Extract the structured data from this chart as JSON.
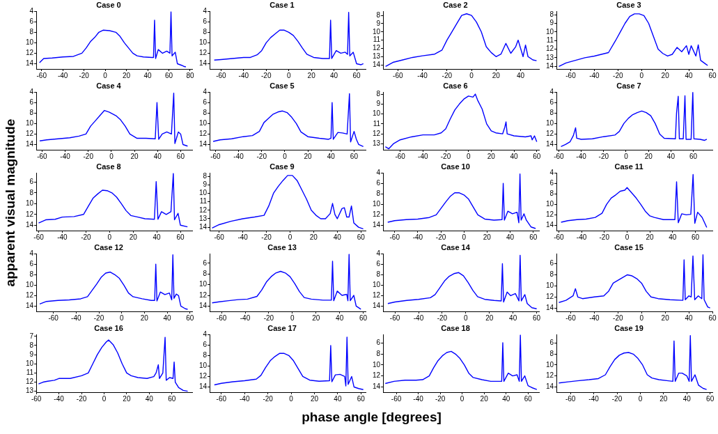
{
  "chart_data": [
    {
      "type": "line",
      "title": "Case 0",
      "xlim": [
        -65,
        82
      ],
      "xticks": [
        -60,
        -40,
        -20,
        0,
        20,
        40,
        60,
        80
      ],
      "ylim": [
        15,
        4
      ],
      "yticks": [
        4,
        6,
        8,
        10,
        12,
        14
      ],
      "grid": false,
      "series": [
        {
          "color": "#0000ff",
          "x": [
            -62,
            -58,
            -50,
            -40,
            -30,
            -22,
            -18,
            -14,
            -10,
            -6,
            -2,
            4,
            10,
            14,
            18,
            22,
            26,
            30,
            36,
            44,
            45.5,
            46.5,
            47.5,
            50,
            54,
            58,
            61,
            62,
            63,
            66,
            68,
            72,
            74,
            76
          ],
          "values": [
            13.8,
            13,
            12.9,
            12.7,
            12.6,
            12,
            11,
            9.8,
            9,
            8,
            7.6,
            7.7,
            8,
            8.8,
            10,
            11,
            12,
            12.5,
            12.7,
            12.8,
            12.8,
            5.7,
            13,
            11.3,
            12,
            11.6,
            12,
            4.1,
            12.5,
            11.8,
            14,
            14.3,
            14.5,
            14.6
          ]
        }
      ]
    },
    {
      "type": "line",
      "title": "Case 1",
      "xlim": [
        -70,
        68
      ],
      "xticks": [
        -60,
        -40,
        -20,
        0,
        20,
        40,
        60
      ],
      "ylim": [
        15,
        4
      ],
      "yticks": [
        4,
        6,
        8,
        10,
        12,
        14
      ],
      "grid": false,
      "series": [
        {
          "color": "#0000ff",
          "x": [
            -66,
            -60,
            -50,
            -40,
            -34,
            -28,
            -24,
            -20,
            -16,
            -12,
            -8,
            -4,
            0,
            4,
            8,
            12,
            16,
            22,
            30,
            36,
            37,
            38,
            42,
            46,
            50,
            52,
            53,
            54,
            57,
            60,
            64,
            66
          ],
          "values": [
            13.3,
            13.2,
            13,
            12.8,
            12.8,
            12.3,
            11.5,
            10,
            9,
            8.3,
            7.6,
            7.6,
            8,
            8.6,
            9.7,
            11,
            12.2,
            12.8,
            13,
            13,
            5.7,
            13,
            11.5,
            12,
            11.8,
            12.2,
            4.2,
            12.5,
            11.8,
            14,
            14.2,
            14
          ]
        }
      ]
    },
    {
      "type": "line",
      "title": "Case 2",
      "xlim": [
        -72,
        55
      ],
      "xticks": [
        -60,
        -40,
        -20,
        0,
        20,
        40
      ],
      "ylim": [
        14.5,
        7.5
      ],
      "yticks": [
        8,
        9,
        10,
        11,
        12,
        13,
        14
      ],
      "grid": false,
      "series": [
        {
          "color": "#0000ff",
          "x": [
            -70,
            -64,
            -56,
            -48,
            -40,
            -30,
            -24,
            -20,
            -16,
            -12,
            -8,
            -4,
            0,
            4,
            8,
            12,
            16,
            20,
            24,
            28,
            32,
            36,
            38,
            40,
            42,
            44,
            46,
            50,
            53
          ],
          "values": [
            14.2,
            13.7,
            13.4,
            13.1,
            12.9,
            12.7,
            12.2,
            11,
            10,
            9,
            8,
            7.8,
            8,
            8.8,
            10,
            11.8,
            12.5,
            13,
            12.7,
            11.4,
            12.6,
            11.8,
            11,
            12,
            13,
            11.6,
            13,
            13.4,
            13.5
          ]
        }
      ]
    },
    {
      "type": "line",
      "title": "Case 3",
      "xlim": [
        -72,
        60
      ],
      "xticks": [
        -60,
        -40,
        -20,
        0,
        20,
        40,
        60
      ],
      "ylim": [
        14.3,
        7.6
      ],
      "yticks": [
        8,
        9,
        10,
        11,
        12,
        13,
        14
      ],
      "grid": false,
      "series": [
        {
          "color": "#0000ff",
          "x": [
            -70,
            -64,
            -56,
            -48,
            -40,
            -34,
            -28,
            -22,
            -18,
            -14,
            -10,
            -6,
            -2,
            2,
            6,
            10,
            14,
            18,
            22,
            26,
            30,
            34,
            38,
            40,
            42,
            46,
            48,
            50,
            54,
            56
          ],
          "values": [
            14,
            13.6,
            13.3,
            13,
            12.8,
            12.6,
            12.4,
            11,
            10,
            9,
            8.2,
            7.9,
            7.9,
            8.1,
            9,
            10.5,
            12,
            12.5,
            12.8,
            12.6,
            11.8,
            12.3,
            11.6,
            12.6,
            11.6,
            12.8,
            11.5,
            13.3,
            13.7,
            13.9
          ]
        }
      ]
    },
    {
      "type": "line",
      "title": "Case 4",
      "xlim": [
        -65,
        70
      ],
      "xticks": [
        -60,
        -40,
        -20,
        0,
        20,
        40,
        60
      ],
      "ylim": [
        15,
        4
      ],
      "yticks": [
        4,
        6,
        8,
        10,
        12,
        14
      ],
      "grid": false,
      "series": [
        {
          "color": "#0000ff",
          "x": [
            -62,
            -56,
            -46,
            -36,
            -28,
            -22,
            -18,
            -14,
            -10,
            -6,
            -2,
            4,
            8,
            12,
            16,
            22,
            30,
            38,
            39.5,
            41,
            44,
            48,
            52,
            54,
            55,
            58,
            60,
            62,
            66
          ],
          "values": [
            13.3,
            13.1,
            12.9,
            12.7,
            12.4,
            12,
            10.5,
            9.5,
            8.5,
            7.5,
            7.8,
            8.5,
            9.3,
            10.5,
            12,
            12.8,
            12.8,
            12.9,
            6,
            13,
            12,
            11.6,
            12,
            4.2,
            13.8,
            11.6,
            12,
            14,
            14.3
          ]
        }
      ]
    },
    {
      "type": "line",
      "title": "Case 5",
      "xlim": [
        -65,
        70
      ],
      "xticks": [
        -60,
        -40,
        -20,
        0,
        20,
        40,
        60
      ],
      "ylim": [
        15,
        4
      ],
      "yticks": [
        4,
        6,
        8,
        10,
        12,
        14
      ],
      "grid": false,
      "series": [
        {
          "color": "#0000ff",
          "x": [
            -62,
            -56,
            -46,
            -36,
            -28,
            -22,
            -18,
            -14,
            -10,
            -6,
            -2,
            2,
            6,
            10,
            14,
            20,
            30,
            38,
            40,
            41,
            42,
            46,
            50,
            54,
            56,
            57,
            60,
            62,
            64,
            68
          ],
          "values": [
            13.4,
            13.1,
            12.9,
            12.5,
            12.3,
            11.5,
            9.8,
            9,
            8.2,
            7.8,
            7.6,
            7.9,
            8.8,
            10,
            11.6,
            12.5,
            12.8,
            13,
            12.8,
            6,
            13,
            11.7,
            11.8,
            12,
            4.3,
            13.5,
            11.5,
            13,
            14,
            14.4
          ]
        }
      ]
    },
    {
      "type": "line",
      "title": "Case 6",
      "xlim": [
        -75,
        62
      ],
      "xticks": [
        -60,
        -40,
        -20,
        0,
        20,
        40,
        60
      ],
      "ylim": [
        13.6,
        7.8
      ],
      "yticks": [
        8,
        9,
        10,
        11,
        12,
        13
      ],
      "grid": false,
      "series": [
        {
          "color": "#0000ff",
          "x": [
            -73,
            -70,
            -66,
            -60,
            -50,
            -40,
            -30,
            -24,
            -20,
            -16,
            -12,
            -8,
            -4,
            0,
            4,
            6,
            8,
            12,
            16,
            20,
            24,
            30,
            32,
            33,
            34,
            40,
            50,
            55,
            56,
            58,
            60
          ],
          "values": [
            13.3,
            13.5,
            13,
            12.6,
            12.3,
            12.1,
            12.1,
            11.9,
            11.5,
            10.5,
            9.6,
            9,
            8.5,
            8.2,
            8.3,
            8,
            8.6,
            9.5,
            11,
            11.7,
            11.9,
            12,
            11.3,
            10.8,
            12,
            12.2,
            12.3,
            12.2,
            12.6,
            12.2,
            12.8
          ]
        }
      ]
    },
    {
      "type": "line",
      "title": "Case 7",
      "xlim": [
        -62,
        77
      ],
      "xticks": [
        -60,
        -40,
        -20,
        0,
        20,
        40,
        60
      ],
      "ylim": [
        15,
        4
      ],
      "yticks": [
        4,
        6,
        8,
        10,
        12,
        14
      ],
      "grid": false,
      "series": [
        {
          "color": "#0000ff",
          "x": [
            -58,
            -54,
            -50,
            -47,
            -45,
            -44,
            -40,
            -30,
            -20,
            -10,
            -6,
            -2,
            2,
            6,
            10,
            14,
            18,
            22,
            26,
            30,
            34,
            44,
            45,
            46.5,
            47.5,
            51,
            52.5,
            53.5,
            58,
            59.5,
            60.5,
            66,
            70,
            72
          ],
          "values": [
            14.4,
            14,
            13.5,
            12.3,
            10.8,
            12.8,
            13,
            12.9,
            12.5,
            12.2,
            11.5,
            10,
            9,
            8.3,
            7.9,
            7.6,
            7.9,
            8.5,
            10,
            12,
            12.8,
            12.9,
            8,
            4.8,
            12.9,
            12.9,
            4.7,
            13,
            13,
            4,
            12.9,
            13,
            13.2,
            13
          ]
        }
      ]
    },
    {
      "type": "line",
      "title": "Case 8",
      "xlim": [
        -62,
        70
      ],
      "xticks": [
        -60,
        -40,
        -20,
        0,
        20,
        40,
        60
      ],
      "ylim": [
        15,
        4.3
      ],
      "yticks": [
        6,
        8,
        10,
        12,
        14
      ],
      "grid": false,
      "series": [
        {
          "color": "#0000ff",
          "x": [
            -60,
            -54,
            -46,
            -40,
            -30,
            -22,
            -18,
            -14,
            -10,
            -6,
            -2,
            2,
            6,
            10,
            14,
            18,
            24,
            30,
            38,
            39.5,
            41,
            44,
            48,
            52,
            54,
            55,
            58,
            60,
            66
          ],
          "values": [
            13.6,
            13,
            12.9,
            12.5,
            12.4,
            12,
            10.5,
            9,
            8.2,
            7.5,
            7.6,
            8,
            8.8,
            10,
            11.3,
            12.2,
            12.5,
            12.8,
            12.9,
            5.9,
            12.9,
            11.5,
            12,
            11.5,
            4.4,
            13,
            11.8,
            14,
            14.3
          ]
        }
      ]
    },
    {
      "type": "line",
      "title": "Case 9",
      "xlim": [
        -68,
        64
      ],
      "xticks": [
        -60,
        -40,
        -20,
        0,
        20,
        40,
        60
      ],
      "ylim": [
        14.4,
        7.6
      ],
      "yticks": [
        8,
        9,
        10,
        11,
        12,
        13,
        14
      ],
      "grid": false,
      "series": [
        {
          "color": "#0000ff",
          "x": [
            -66,
            -60,
            -50,
            -40,
            -30,
            -22,
            -18,
            -14,
            -10,
            -6,
            -2,
            2,
            6,
            10,
            14,
            18,
            22,
            26,
            30,
            34,
            36,
            38,
            40,
            44,
            46,
            48,
            50,
            52,
            54,
            58,
            62
          ],
          "values": [
            14.1,
            13.7,
            13.3,
            13,
            12.8,
            12.6,
            11.5,
            10,
            9.2,
            8.5,
            7.9,
            7.9,
            8.5,
            9.6,
            10.7,
            12,
            12.6,
            13,
            13,
            12.4,
            11.2,
            12.5,
            13,
            11.8,
            11.7,
            12.8,
            12.8,
            11.5,
            13.5,
            14,
            14.2
          ]
        }
      ]
    },
    {
      "type": "line",
      "title": "Case 10",
      "xlim": [
        -70,
        65
      ],
      "xticks": [
        -60,
        -40,
        -20,
        0,
        20,
        40,
        60
      ],
      "ylim": [
        15,
        4
      ],
      "yticks": [
        4,
        6,
        8,
        10,
        12,
        14
      ],
      "grid": false,
      "series": [
        {
          "color": "#0000ff",
          "x": [
            -66,
            -60,
            -50,
            -40,
            -30,
            -24,
            -20,
            -16,
            -12,
            -8,
            -4,
            0,
            4,
            8,
            12,
            18,
            26,
            33,
            34,
            35,
            38,
            42,
            46,
            47.5,
            48.5,
            49.5,
            52,
            54,
            58,
            62
          ],
          "values": [
            13.4,
            13.1,
            12.9,
            12.8,
            12.5,
            12,
            10.8,
            9.6,
            8.5,
            7.8,
            7.8,
            8.2,
            9,
            10.5,
            12,
            12.8,
            13,
            12.9,
            6,
            13,
            11.3,
            11.8,
            11.5,
            13.5,
            4.2,
            13,
            11.8,
            13,
            14.3,
            14.6
          ]
        }
      ]
    },
    {
      "type": "line",
      "title": "Case 11",
      "xlim": [
        -62,
        75
      ],
      "xticks": [
        -60,
        -40,
        -20,
        0,
        20,
        40,
        60
      ],
      "ylim": [
        15,
        4
      ],
      "yticks": [
        4,
        6,
        8,
        10,
        12,
        14
      ],
      "grid": false,
      "series": [
        {
          "color": "#0000ff",
          "x": [
            -58,
            -52,
            -44,
            -36,
            -28,
            -22,
            -18,
            -14,
            -10,
            -6,
            -2,
            0,
            4,
            8,
            12,
            16,
            20,
            24,
            32,
            42,
            43.5,
            45,
            48,
            52,
            56,
            58,
            59.5,
            62,
            66,
            70
          ],
          "values": [
            13.4,
            13.1,
            12.9,
            12.8,
            12.5,
            11.7,
            10,
            8.8,
            8.2,
            7.5,
            7.3,
            6.8,
            7.8,
            8.8,
            10,
            11.3,
            12.2,
            12.5,
            12.9,
            12.9,
            5.7,
            13.5,
            11.8,
            12,
            11.9,
            4.3,
            13.6,
            11.5,
            12.5,
            14.4
          ]
        }
      ]
    },
    {
      "type": "line",
      "title": "Case 12",
      "xlim": [
        -75,
        62
      ],
      "xticks": [
        -60,
        -40,
        -20,
        0,
        20,
        40,
        60
      ],
      "ylim": [
        15,
        4
      ],
      "yticks": [
        4,
        6,
        8,
        10,
        12,
        14
      ],
      "grid": false,
      "series": [
        {
          "color": "#0000ff",
          "x": [
            -72,
            -66,
            -56,
            -46,
            -36,
            -30,
            -26,
            -22,
            -18,
            -14,
            -10,
            -6,
            -2,
            2,
            6,
            10,
            18,
            26,
            29,
            30,
            31,
            34,
            38,
            42,
            44,
            45,
            46,
            48,
            50,
            52,
            56,
            58
          ],
          "values": [
            13.6,
            13.1,
            12.9,
            12.8,
            12.6,
            12.2,
            11,
            9.8,
            8.5,
            7.7,
            7.5,
            8,
            8.7,
            10,
            11.5,
            12.2,
            12.6,
            12.9,
            12.9,
            6,
            13,
            11.3,
            11.8,
            11.5,
            12.8,
            4.2,
            12.5,
            11.7,
            12,
            14,
            14.5,
            14.6
          ]
        }
      ]
    },
    {
      "type": "line",
      "title": "Case 13",
      "xlim": [
        -70,
        62
      ],
      "xticks": [
        -60,
        -40,
        -20,
        0,
        20,
        40,
        60
      ],
      "ylim": [
        15,
        4.2
      ],
      "yticks": [
        6,
        8,
        10,
        12,
        14
      ],
      "grid": false,
      "series": [
        {
          "color": "#0000ff",
          "x": [
            -68,
            -62,
            -54,
            -46,
            -38,
            -30,
            -26,
            -22,
            -18,
            -14,
            -10,
            -6,
            -2,
            2,
            6,
            10,
            16,
            26,
            33,
            34,
            35,
            38,
            42,
            46,
            47,
            48,
            49,
            52,
            54,
            58
          ],
          "values": [
            13.4,
            13.2,
            13,
            12.8,
            12.7,
            12.2,
            11,
            9.5,
            8.5,
            7.8,
            7.5,
            7.8,
            8.5,
            9.8,
            11.3,
            12.4,
            12.7,
            12.9,
            12.9,
            5.6,
            13,
            11.2,
            12,
            11.8,
            13,
            4.3,
            13,
            12,
            14,
            14.6
          ]
        }
      ]
    },
    {
      "type": "line",
      "title": "Case 14",
      "xlim": [
        -70,
        62
      ],
      "xticks": [
        -60,
        -40,
        -20,
        0,
        20,
        40,
        60
      ],
      "ylim": [
        15,
        4
      ],
      "yticks": [
        4,
        6,
        8,
        10,
        12,
        14
      ],
      "grid": false,
      "series": [
        {
          "color": "#0000ff",
          "x": [
            -66,
            -60,
            -50,
            -40,
            -30,
            -26,
            -22,
            -18,
            -14,
            -10,
            -6,
            -2,
            2,
            6,
            10,
            16,
            24,
            30,
            31,
            32,
            35,
            38,
            42,
            45,
            46,
            47,
            50,
            52,
            56,
            60
          ],
          "values": [
            13.5,
            13.2,
            12.9,
            12.7,
            12.4,
            11.8,
            10.5,
            9.2,
            8.3,
            7.8,
            7.6,
            8.2,
            9.5,
            11,
            12.2,
            12.7,
            12.9,
            13,
            5.9,
            13.2,
            11.3,
            12,
            11.6,
            13,
            4.3,
            13,
            11.8,
            13.5,
            14.3,
            14.5
          ]
        }
      ]
    },
    {
      "type": "line",
      "title": "Case 15",
      "xlim": [
        -72,
        60
      ],
      "xticks": [
        -60,
        -40,
        -20,
        0,
        20,
        40,
        60
      ],
      "ylim": [
        14.6,
        4.2
      ],
      "yticks": [
        6,
        8,
        10,
        12,
        14
      ],
      "grid": false,
      "series": [
        {
          "color": "#0000ff",
          "x": [
            -70,
            -64,
            -58,
            -56,
            -54,
            -50,
            -40,
            -32,
            -28,
            -24,
            -20,
            -16,
            -12,
            -8,
            -4,
            0,
            4,
            8,
            14,
            24,
            35,
            36,
            37,
            40,
            42,
            43.5,
            45,
            48,
            51,
            52,
            53,
            56,
            58
          ],
          "values": [
            13,
            12.6,
            11.8,
            10.5,
            12,
            12.3,
            12,
            11.8,
            11,
            9.5,
            9,
            8.5,
            8,
            8.2,
            8.7,
            9.5,
            11,
            12,
            12.3,
            12.5,
            12.6,
            5.3,
            12.5,
            11.8,
            12,
            4.6,
            12.5,
            11.8,
            12.3,
            4.4,
            12.5,
            13.8,
            14
          ]
        }
      ]
    },
    {
      "type": "line",
      "title": "Case 16",
      "xlim": [
        -60,
        78
      ],
      "xticks": [
        -60,
        -40,
        -20,
        0,
        20,
        40,
        60
      ],
      "ylim": [
        13.1,
        6.8
      ],
      "yticks": [
        7,
        8,
        9,
        10,
        11,
        12,
        13
      ],
      "grid": false,
      "series": [
        {
          "color": "#0000ff",
          "x": [
            -58,
            -54,
            -50,
            -44,
            -40,
            -30,
            -20,
            -14,
            -10,
            -6,
            -2,
            2,
            4,
            8,
            12,
            16,
            20,
            24,
            30,
            38,
            44,
            46,
            48,
            49,
            52,
            54,
            55,
            58,
            61,
            62,
            63,
            66,
            70,
            74
          ],
          "values": [
            12.2,
            12,
            11.9,
            11.8,
            11.6,
            11.6,
            11.3,
            11,
            10,
            9,
            8.2,
            7.6,
            7.4,
            7.9,
            8.8,
            10,
            11,
            11.3,
            11.5,
            11.6,
            11.4,
            11,
            10.1,
            11.6,
            11,
            7.1,
            11.8,
            11.5,
            11.6,
            9.8,
            12,
            12.6,
            12.9,
            13
          ]
        }
      ]
    },
    {
      "type": "line",
      "title": "Case 17",
      "xlim": [
        -70,
        64
      ],
      "xticks": [
        -60,
        -40,
        -20,
        0,
        20,
        40,
        60
      ],
      "ylim": [
        15,
        4
      ],
      "yticks": [
        4,
        6,
        8,
        10,
        12,
        14
      ],
      "grid": false,
      "series": [
        {
          "color": "#0000ff",
          "x": [
            -66,
            -60,
            -50,
            -40,
            -30,
            -26,
            -22,
            -18,
            -14,
            -10,
            -6,
            -2,
            2,
            6,
            10,
            16,
            24,
            33,
            34,
            35,
            38,
            42,
            46,
            47,
            48,
            49,
            52,
            54,
            58,
            62
          ],
          "values": [
            13.6,
            13.3,
            13,
            12.8,
            12.5,
            11.8,
            10.3,
            9,
            8.2,
            7.6,
            7.6,
            8,
            9,
            10.5,
            12,
            12.7,
            12.9,
            12.8,
            6.1,
            13,
            11.7,
            11.6,
            12,
            13.8,
            4.5,
            13.5,
            12,
            14,
            14.3,
            14.5
          ]
        }
      ]
    },
    {
      "type": "line",
      "title": "Case 18",
      "xlim": [
        -72,
        70
      ],
      "xticks": [
        -60,
        -40,
        -20,
        0,
        20,
        40,
        60
      ],
      "ylim": [
        15,
        4.4
      ],
      "yticks": [
        6,
        8,
        10,
        12,
        14
      ],
      "grid": false,
      "series": [
        {
          "color": "#0000ff",
          "x": [
            -70,
            -62,
            -52,
            -42,
            -36,
            -30,
            -26,
            -22,
            -18,
            -14,
            -10,
            -6,
            -2,
            2,
            6,
            10,
            18,
            26,
            36,
            37,
            38,
            42,
            46,
            50,
            52,
            53,
            54,
            57,
            60,
            64,
            68
          ],
          "values": [
            13.4,
            13,
            12.8,
            12.8,
            12.7,
            12,
            10.5,
            9.2,
            8.3,
            7.7,
            7.5,
            8,
            8.8,
            10,
            11.5,
            12.3,
            12.7,
            13,
            13,
            5.9,
            13,
            11.5,
            12,
            11.8,
            13,
            4.5,
            13,
            12,
            13.8,
            14.2,
            14.5
          ]
        }
      ]
    },
    {
      "type": "line",
      "title": "Case 19",
      "xlim": [
        -72,
        62
      ],
      "xticks": [
        -60,
        -40,
        -20,
        0,
        20,
        40,
        60
      ],
      "ylim": [
        15,
        4.4
      ],
      "yticks": [
        6,
        8,
        10,
        12,
        14
      ],
      "grid": false,
      "series": [
        {
          "color": "#0000ff",
          "x": [
            -70,
            -62,
            -54,
            -44,
            -36,
            -30,
            -26,
            -22,
            -18,
            -14,
            -10,
            -6,
            -2,
            2,
            6,
            10,
            16,
            24,
            28,
            29,
            30,
            33,
            36,
            40,
            42,
            43,
            44,
            47,
            50,
            54,
            57
          ],
          "values": [
            13.3,
            13.1,
            12.9,
            12.7,
            12.5,
            11.8,
            10.3,
            9,
            8.2,
            7.8,
            7.7,
            8,
            8.8,
            10,
            11.8,
            12.4,
            12.7,
            12.9,
            13,
            5.6,
            13,
            11.5,
            11.5,
            12,
            13,
            4.6,
            13,
            11.8,
            13.7,
            14.3,
            14.5
          ]
        }
      ]
    },
    {
      "type": "other",
      "xlabel": "phase angle [degrees]",
      "ylabel": "apparent visual magnitude"
    }
  ]
}
